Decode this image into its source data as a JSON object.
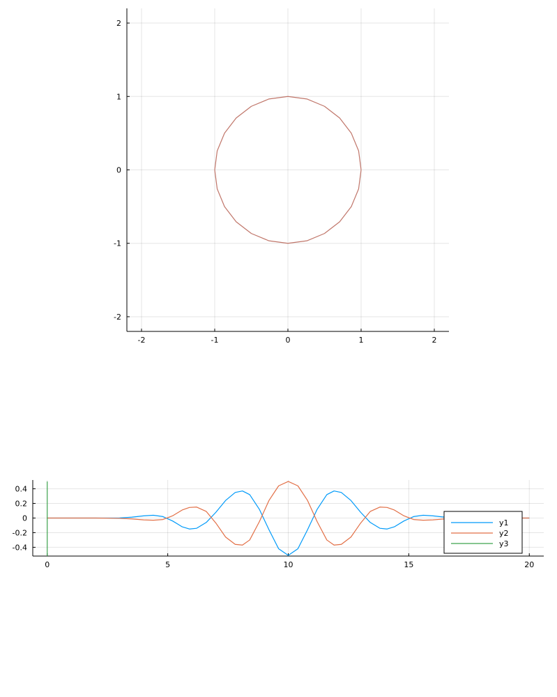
{
  "chart_data": [
    {
      "type": "line",
      "title": "",
      "xlabel": "",
      "ylabel": "",
      "xlim": [
        -2.2,
        2.2
      ],
      "ylim": [
        -2.2,
        2.2
      ],
      "xticks": [
        -2,
        -1,
        0,
        1,
        2
      ],
      "yticks": [
        -2,
        -1,
        0,
        1,
        2
      ],
      "grid": true,
      "legend": "none",
      "series": [
        {
          "color": "#c0766a",
          "x": [
            1.0,
            0.966,
            0.866,
            0.707,
            0.5,
            0.259,
            0.0,
            -0.259,
            -0.5,
            -0.707,
            -0.866,
            -0.966,
            -1.0,
            -0.966,
            -0.866,
            -0.707,
            -0.5,
            -0.259,
            0.0,
            0.259,
            0.5,
            0.707,
            0.866,
            0.966,
            1.0
          ],
          "y": [
            0.0,
            0.259,
            0.5,
            0.707,
            0.866,
            0.966,
            1.0,
            0.966,
            0.866,
            0.707,
            0.5,
            0.259,
            0.0,
            -0.259,
            -0.5,
            -0.707,
            -0.866,
            -0.966,
            -1.0,
            -0.966,
            -0.866,
            -0.707,
            -0.5,
            -0.259,
            0.0
          ]
        }
      ]
    },
    {
      "type": "line",
      "title": "",
      "xlabel": "",
      "ylabel": "",
      "xlim": [
        -0.6,
        20.6
      ],
      "ylim": [
        -0.52,
        0.52
      ],
      "xticks": [
        0,
        5,
        10,
        15,
        20
      ],
      "yticks": [
        -0.4,
        -0.2,
        0.0,
        0.2,
        0.4
      ],
      "grid": true,
      "legend": "right",
      "series": [
        {
          "name": "y1",
          "color": "#009af9",
          "x": [
            0,
            1,
            2,
            3,
            3.5,
            4,
            4.4,
            4.8,
            5.2,
            5.6,
            5.9,
            6.2,
            6.6,
            7.0,
            7.4,
            7.8,
            8.1,
            8.4,
            8.8,
            9.2,
            9.6,
            10.0,
            10.4,
            10.8,
            11.2,
            11.6,
            11.9,
            12.2,
            12.6,
            13.0,
            13.4,
            13.8,
            14.1,
            14.4,
            14.8,
            15.2,
            15.6,
            16.0,
            16.5,
            17.0,
            18.0,
            19.0,
            20.0
          ],
          "y": [
            0.0,
            0.0,
            0.0,
            0.002,
            0.012,
            0.03,
            0.038,
            0.02,
            -0.04,
            -0.12,
            -0.15,
            -0.14,
            -0.06,
            0.08,
            0.24,
            0.35,
            0.37,
            0.32,
            0.12,
            -0.16,
            -0.42,
            -0.51,
            -0.42,
            -0.16,
            0.12,
            0.32,
            0.37,
            0.35,
            0.24,
            0.08,
            -0.06,
            -0.14,
            -0.15,
            -0.12,
            -0.04,
            0.02,
            0.038,
            0.03,
            0.012,
            0.002,
            0.0,
            0.0,
            0.0
          ]
        },
        {
          "name": "y2",
          "color": "#e26f46",
          "x": [
            0,
            1,
            2,
            3,
            3.5,
            4,
            4.4,
            4.8,
            5.2,
            5.6,
            5.9,
            6.2,
            6.6,
            7.0,
            7.4,
            7.8,
            8.1,
            8.4,
            8.8,
            9.2,
            9.6,
            10.0,
            10.4,
            10.8,
            11.2,
            11.6,
            11.9,
            12.2,
            12.6,
            13.0,
            13.4,
            13.8,
            14.1,
            14.4,
            14.8,
            15.2,
            15.6,
            16.0,
            16.5,
            17.0,
            18.0,
            19.0,
            20.0
          ],
          "y": [
            0.0,
            0.0,
            0.0,
            -0.004,
            -0.012,
            -0.025,
            -0.03,
            -0.02,
            0.03,
            0.11,
            0.145,
            0.15,
            0.09,
            -0.07,
            -0.26,
            -0.36,
            -0.37,
            -0.3,
            -0.05,
            0.24,
            0.44,
            0.5,
            0.44,
            0.24,
            -0.05,
            -0.3,
            -0.37,
            -0.36,
            -0.26,
            -0.07,
            0.09,
            0.15,
            0.145,
            0.11,
            0.03,
            -0.02,
            -0.03,
            -0.025,
            -0.012,
            -0.004,
            0.0,
            0.0,
            0.0
          ]
        },
        {
          "name": "y3",
          "color": "#3ea44e",
          "x": [
            0,
            0
          ],
          "y": [
            -0.52,
            0.5
          ]
        }
      ]
    }
  ]
}
